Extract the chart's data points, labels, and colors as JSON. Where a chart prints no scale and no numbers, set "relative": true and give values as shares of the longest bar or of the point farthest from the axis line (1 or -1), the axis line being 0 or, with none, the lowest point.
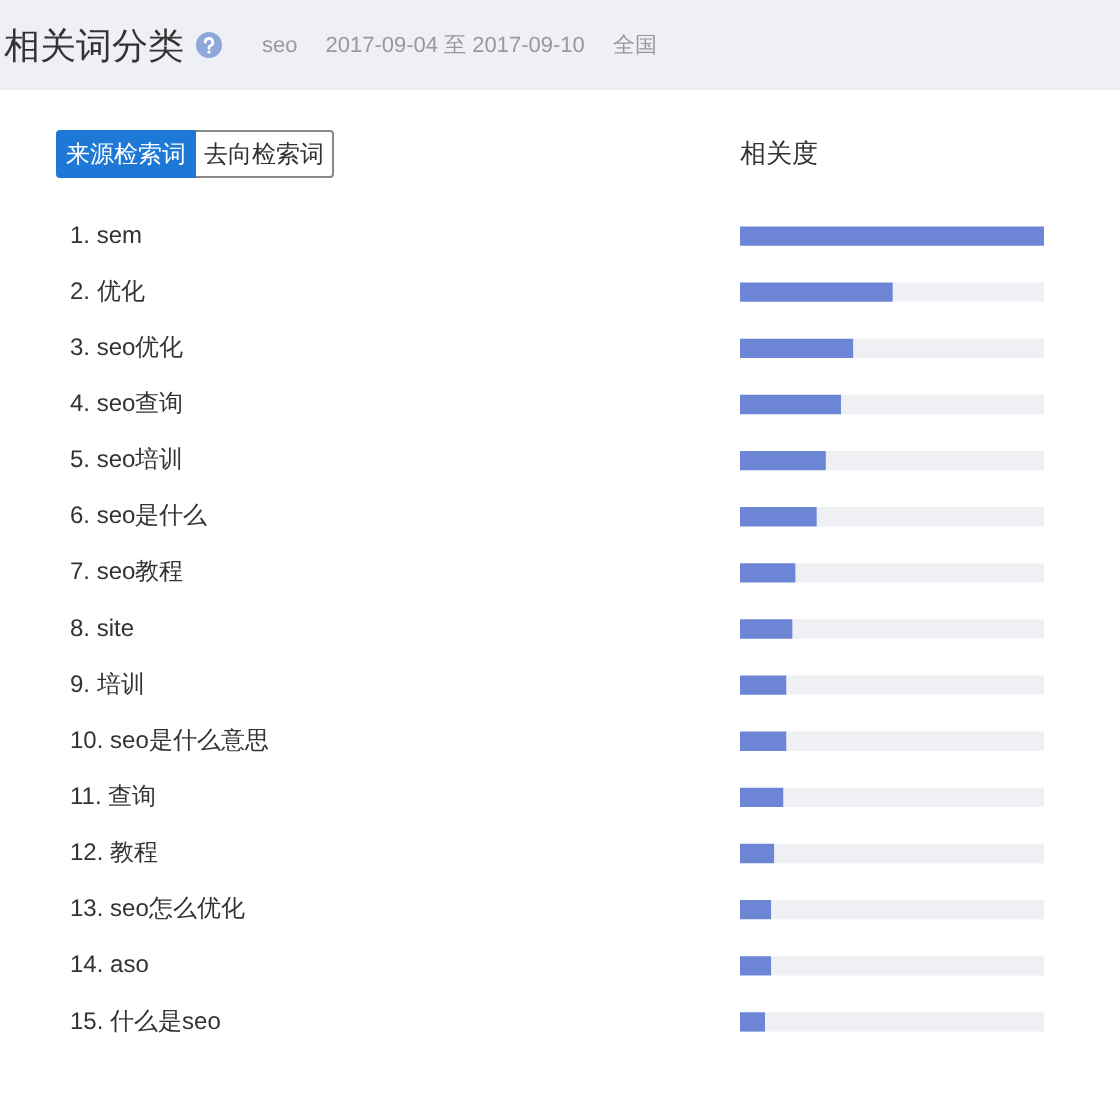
{
  "chart_data": {
    "type": "bar",
    "orientation": "horizontal",
    "stacked": true,
    "relative": true,
    "tick_labels": "y",
    "title": "相关词分类",
    "xlabel": "相关度",
    "annotations": [
      "seo",
      "2017-09-04 至 2017-09-10",
      "全国",
      "来源检索词",
      "去向检索词"
    ],
    "categories": [
      "1. sem",
      "2. 优化",
      "3. seo优化",
      "4. seo查询",
      "5. seo培训",
      "6. seo是什么",
      "7. seo教程",
      "8. site",
      "9. 培训",
      "10. seo是什么意思",
      "11. 查询",
      "12. 教程",
      "13. seo怎么优化",
      "14. aso",
      "15. 什么是seo"
    ],
    "series": [
      {
        "color": "#6c85d5",
        "values": [
          1,
          0.5,
          0.37,
          0.33,
          0.28,
          0.25,
          0.18,
          0.17,
          0.15,
          0.15,
          0.14,
          0.11,
          0.1,
          0.1,
          0.08
        ]
      },
      {
        "color": "#eff0f4",
        "values": [
          0,
          0.5,
          0.63,
          0.67,
          0.72,
          0.75,
          0.82,
          0.83,
          0.85,
          0.85,
          0.86,
          0.89,
          0.9,
          0.9,
          0.92
        ]
      }
    ]
  }
}
